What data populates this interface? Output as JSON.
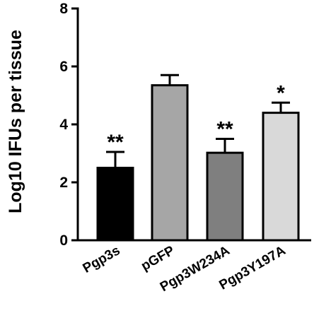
{
  "chart_data": {
    "type": "bar",
    "title": "",
    "xlabel": "",
    "ylabel": "Log10 IFUs per tissue",
    "ylim": [
      0,
      8
    ],
    "yticks": [
      0,
      2,
      4,
      6,
      8
    ],
    "grid": false,
    "legend": "none",
    "categories": [
      "Pgp3s",
      "pGFP",
      "Pgp3W234A",
      "Pgp3Y197A"
    ],
    "values": [
      2.5,
      5.35,
      3.02,
      4.4
    ],
    "errors": [
      0.55,
      0.35,
      0.48,
      0.35
    ],
    "significance": [
      "**",
      "",
      "**",
      "*"
    ],
    "colors": [
      "#000000",
      "#a6a6a6",
      "#7f7f7f",
      "#d9d9d9"
    ]
  }
}
